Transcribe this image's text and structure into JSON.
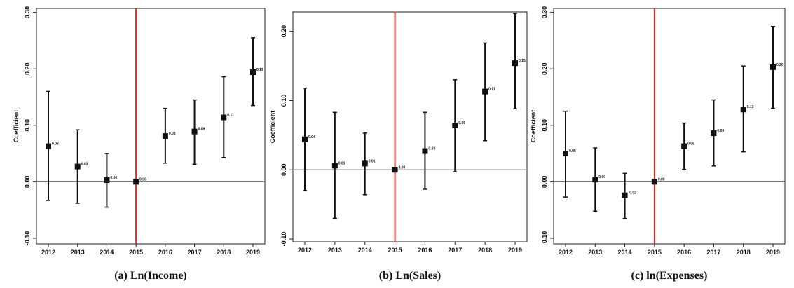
{
  "chart_data": [
    {
      "type": "errorbar",
      "title": "(a) Ln(Income)",
      "ylabel": "Coefficient",
      "categories": [
        "2012",
        "2013",
        "2014",
        "2015",
        "2016",
        "2017",
        "2018",
        "2019"
      ],
      "values": [
        0.063,
        0.027,
        0.003,
        0,
        0.081,
        0.089,
        0.114,
        0.194
      ],
      "value_labels": [
        "0.06",
        "0.03",
        "0.00",
        "0.00",
        "0.08",
        "0.09",
        "0.11",
        "0.19"
      ],
      "lower": [
        -0.033,
        -0.038,
        -0.045,
        null,
        0.033,
        0.031,
        0.043,
        0.135
      ],
      "upper": [
        0.16,
        0.092,
        0.05,
        null,
        0.13,
        0.145,
        0.186,
        0.255
      ],
      "color": "#111111",
      "ylim": [
        -0.11,
        0.307
      ],
      "yticks": [
        {
          "value": -0.1,
          "label": "-0.10"
        },
        {
          "value": 0,
          "label": "0.00"
        },
        {
          "value": 0.1,
          "label": "0.10"
        },
        {
          "value": 0.2,
          "label": "0.20"
        },
        {
          "value": 0.3,
          "label": "0.30"
        }
      ],
      "hline": {
        "at": 0,
        "color": "#777777"
      },
      "vline": {
        "at": "2015",
        "color": "#e8231a"
      }
    },
    {
      "type": "errorbar",
      "title": "(b) Ln(Sales)",
      "ylabel": "Coefficient",
      "categories": [
        "2012",
        "2013",
        "2014",
        "2015",
        "2016",
        "2017",
        "2018",
        "2019"
      ],
      "values": [
        0.044,
        0.006,
        0.009,
        0,
        0.027,
        0.064,
        0.113,
        0.154
      ],
      "value_labels": [
        "0.04",
        "0.01",
        "0.01",
        "0.00",
        "0.03",
        "0.06",
        "0.11",
        "0.15"
      ],
      "lower": [
        -0.03,
        -0.07,
        -0.036,
        null,
        -0.028,
        -0.003,
        0.042,
        0.088
      ],
      "upper": [
        0.118,
        0.083,
        0.053,
        null,
        0.083,
        0.13,
        0.183,
        0.226
      ],
      "color": "#111111",
      "ylim": [
        -0.104,
        0.228
      ],
      "yticks": [
        {
          "value": -0.1,
          "label": "-0.10"
        },
        {
          "value": 0,
          "label": "0.00"
        },
        {
          "value": 0.1,
          "label": "0.10"
        },
        {
          "value": 0.2,
          "label": "0.20"
        }
      ],
      "hline": {
        "at": 0,
        "color": "#777777"
      },
      "vline": {
        "at": "2015",
        "color": "#e8231a"
      }
    },
    {
      "type": "errorbar",
      "title": "(c) ln(Expenses)",
      "ylabel": "Coefficient",
      "categories": [
        "2012",
        "2013",
        "2014",
        "2015",
        "2016",
        "2017",
        "2018",
        "2019"
      ],
      "values": [
        0.05,
        0.004,
        -0.024,
        0,
        0.063,
        0.086,
        0.128,
        0.203
      ],
      "value_labels": [
        "0.05",
        "0.00",
        "-0.02",
        "0.00",
        "0.06",
        "0.09",
        "0.13",
        "0.20"
      ],
      "lower": [
        -0.027,
        -0.052,
        -0.065,
        null,
        0.022,
        0.028,
        0.053,
        0.13
      ],
      "upper": [
        0.125,
        0.06,
        0.015,
        null,
        0.104,
        0.145,
        0.205,
        0.275
      ],
      "color": "#111111",
      "ylim": [
        -0.11,
        0.307
      ],
      "yticks": [
        {
          "value": -0.1,
          "label": "-0.10"
        },
        {
          "value": 0,
          "label": "0.00"
        },
        {
          "value": 0.1,
          "label": "0.10"
        },
        {
          "value": 0.2,
          "label": "0.20"
        },
        {
          "value": 0.3,
          "label": "0.30"
        }
      ],
      "hline": {
        "at": 0,
        "color": "#777777"
      },
      "vline": {
        "at": "2015",
        "color": "#e8231a"
      }
    }
  ]
}
